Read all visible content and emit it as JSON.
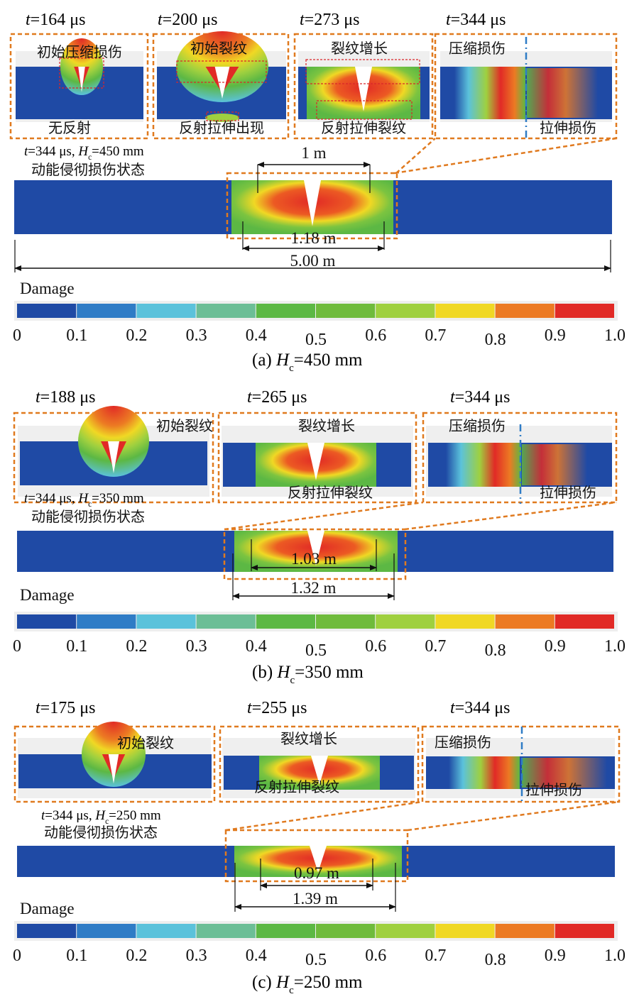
{
  "colorbar": {
    "colors": [
      "#1f4aa5",
      "#2f7cc6",
      "#5bc2db",
      "#6cbe96",
      "#5cb844",
      "#6fbb3c",
      "#9fd03f",
      "#f0d824",
      "#ec7a23",
      "#e12a26"
    ],
    "ticks": [
      "0",
      "0.1",
      "0.2",
      "0.3",
      "0.4",
      "0.5",
      "0.6",
      "0.7",
      "0.8",
      "0.9",
      "1.0"
    ]
  },
  "panels": [
    {
      "caption_prefix": "(a)",
      "caption_var": "H",
      "caption_sub": "c",
      "caption_value": "=450 mm",
      "damage_label": "Damage",
      "state_line1_time": "t=344 μs, ",
      "state_line1_var": "H",
      "state_line1_sub": "c",
      "state_line1_value": "=450 mm",
      "state_line2": "动能侵彻损伤状态",
      "dims": {
        "top": "1 m",
        "inner": "1.18 m",
        "total": "5.00 m"
      },
      "snapshots": [
        {
          "time": "t=164 μs",
          "top_label": "初始压缩损伤",
          "bottom_label": "无反射"
        },
        {
          "time": "t=200 μs",
          "top_label": "初始裂纹",
          "bottom_label": "反射拉伸出现"
        },
        {
          "time": "t=273 μs",
          "top_label": "裂纹增长",
          "bottom_label": "反射拉伸裂纹"
        },
        {
          "time": "t=344 μs",
          "top_label": "压缩损伤",
          "bottom_label": "拉伸损伤"
        }
      ]
    },
    {
      "caption_prefix": "(b)",
      "caption_var": "H",
      "caption_sub": "c",
      "caption_value": "=350 mm",
      "damage_label": "Damage",
      "state_line1_time": "t=344 μs, ",
      "state_line1_var": "H",
      "state_line1_sub": "c",
      "state_line1_value": "=350 mm",
      "state_line2": "动能侵彻损伤状态",
      "dims": {
        "inner": "1.03 m",
        "outer": "1.32 m"
      },
      "snapshots": [
        {
          "time": "t=188 μs",
          "top_label": "初始裂纹",
          "bottom_label": ""
        },
        {
          "time": "t=265 μs",
          "top_label": "裂纹增长",
          "bottom_label": "反射拉伸裂纹"
        },
        {
          "time": "t=344 μs",
          "top_label": "压缩损伤",
          "bottom_label": "拉伸损伤"
        }
      ]
    },
    {
      "caption_prefix": "(c)",
      "caption_var": "H",
      "caption_sub": "c",
      "caption_value": "=250 mm",
      "damage_label": "Damage",
      "state_line1_time": "t=344 μs, ",
      "state_line1_var": "H",
      "state_line1_sub": "c",
      "state_line1_value": "=250 mm",
      "state_line2": "动能侵彻损伤状态",
      "dims": {
        "inner": "0.97 m",
        "outer": "1.39 m"
      },
      "snapshots": [
        {
          "time": "t=175 μs",
          "top_label": "初始裂纹",
          "bottom_label": ""
        },
        {
          "time": "t=255 μs",
          "top_label": "裂纹增长",
          "bottom_label": "反射拉伸裂纹"
        },
        {
          "time": "t=344 μs",
          "top_label": "压缩损伤",
          "bottom_label": "拉伸损伤"
        }
      ]
    }
  ]
}
